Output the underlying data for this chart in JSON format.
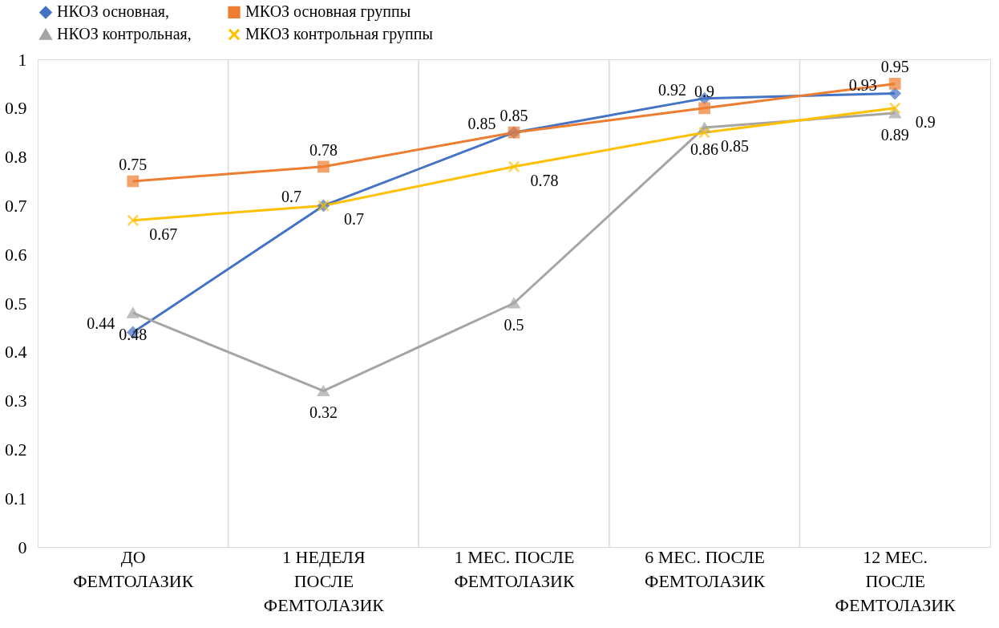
{
  "chart_data": {
    "type": "line",
    "categories": [
      "ДО ФЕМТОЛАЗИК",
      "1 НЕДЕЛЯ ПОСЛЕ ФЕМТОЛАЗИК",
      "1 МЕС. ПОСЛЕ ФЕМТОЛАЗИК",
      "6 МЕС. ПОСЛЕ ФЕМТОЛАЗИК",
      "12 МЕС. ПОСЛЕ ФЕМТОЛАЗИК"
    ],
    "series": [
      {
        "name": "НКОЗ основная,",
        "color": "#4472c4",
        "marker": "diamond",
        "values": [
          0.44,
          0.7,
          0.85,
          0.92,
          0.93
        ]
      },
      {
        "name": "МКОЗ основная группы",
        "color": "#ed7d31",
        "marker": "square",
        "values": [
          0.75,
          0.78,
          0.85,
          0.9,
          0.95
        ]
      },
      {
        "name": "НКОЗ контрольная,",
        "color": "#a5a5a5",
        "marker": "triangle",
        "values": [
          0.48,
          0.32,
          0.5,
          0.86,
          0.89
        ]
      },
      {
        "name": "МКОЗ контрольная группы",
        "color": "#ffc000",
        "marker": "cross",
        "values": [
          0.67,
          0.7,
          0.78,
          0.85,
          0.9
        ]
      }
    ],
    "ylim": [
      0,
      1
    ],
    "yticks": [
      0,
      0.1,
      0.2,
      0.3,
      0.4,
      0.5,
      0.6,
      0.7,
      0.8,
      0.9,
      1
    ],
    "grid": "x",
    "legend": "top",
    "data_labels": true,
    "line_style": "solid"
  }
}
